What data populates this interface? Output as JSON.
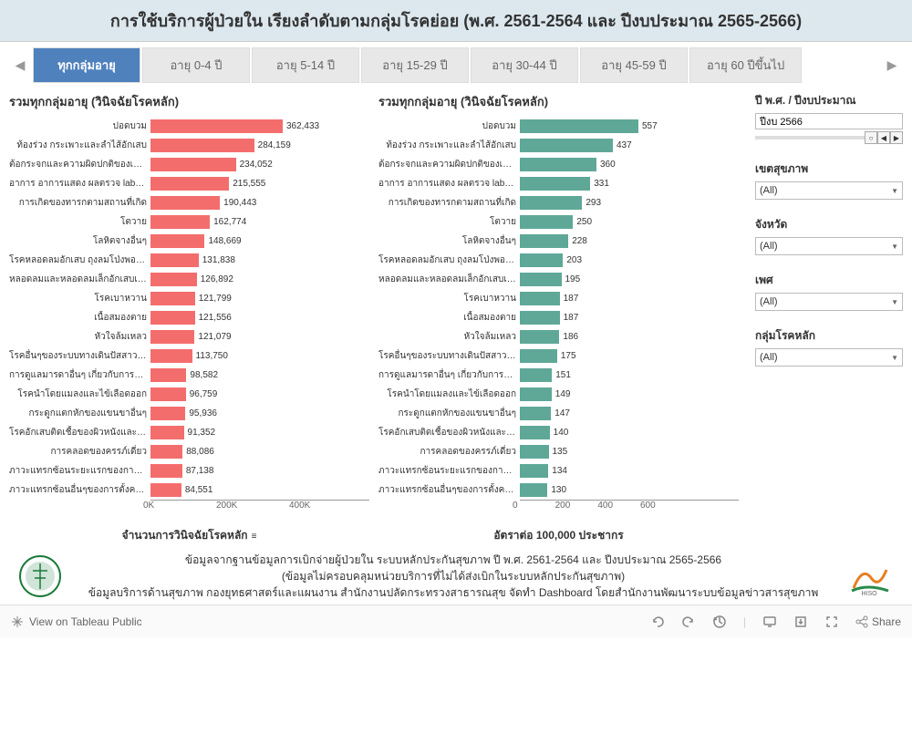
{
  "title": "การใช้บริการผู้ป่วยใน เรียงลำดับตามกลุ่มโรคย่อย (พ.ศ. 2561-2564 และ ปีงบประมาณ 2565-2566)",
  "tabs": {
    "items": [
      {
        "label": "ทุกกลุ่มอายุ",
        "active": true
      },
      {
        "label": "อายุ 0-4 ปี",
        "active": false
      },
      {
        "label": "อายุ 5-14 ปี",
        "active": false
      },
      {
        "label": "อายุ 15-29 ปี",
        "active": false
      },
      {
        "label": "อายุ 30-44 ปี",
        "active": false
      },
      {
        "label": "อายุ 45-59 ปี",
        "active": false
      },
      {
        "label": "อายุ 60 ปีขึ้นไป",
        "active": false
      }
    ]
  },
  "chart1": {
    "title": "รวมทุกกลุ่มอายุ (วินิจฉัยโรคหลัก)",
    "type": "bar",
    "bar_color": "#f46d6d",
    "background_color": "#ffffff",
    "label_fontsize": 10,
    "value_fontsize": 10,
    "max_value": 400000,
    "xticks": [
      "0K",
      "200K",
      "400K"
    ],
    "xtick_positions": [
      0,
      0.5,
      1.0
    ],
    "xlabel": "จำนวนการวินิจฉัยโรคหลัก",
    "categories": [
      "ปอดบวม",
      "ท้องร่วง กระเพาะและลำไส้อักเสบ",
      "ต้อกระจกและความผิดปกติของเลนส์..",
      "อาการ อาการแสดง ผลตรวจ lab อื่นๆ",
      "การเกิดของทารกตามสถานที่เกิด",
      "โตวาย",
      "โลหิตจางอื่นๆ",
      "โรคหลอดลมอักเสบ ถุงลมโป่งพอง ป..",
      "หลอดลมและหลอดลมเล็กอักเสบเฉีย..",
      "โรคเบาหวาน",
      "เนื้อสมองตาย",
      "หัวใจล้มเหลว",
      "โรคอื่นๆของระบบทางเดินปัสสาวะ..",
      "การดูแลมารดาอื่นๆ เกี่ยวกับการกไนค..",
      "โรคนำโดยแมลงและไข้เลือดออก",
      "กระดูกแตกหักของแขนขาอื่นๆ",
      "โรคอักเสบติดเชื้อของผิวหนังและเนื้อ..",
      "การคลอดของครรภ์เดี่ยว",
      "ภาวะแทรกซ้อนระยะแรกของการบาด..",
      "ภาวะแทรกซ้อนอื่นๆของการตั้งครรภ์.."
    ],
    "values": [
      362433,
      284159,
      234052,
      215555,
      190443,
      162774,
      148669,
      131838,
      126892,
      121799,
      121556,
      121079,
      113750,
      98582,
      96759,
      95936,
      91352,
      88086,
      87138,
      84551
    ],
    "value_labels": [
      "362,433",
      "284,159",
      "234,052",
      "215,555",
      "190,443",
      "162,774",
      "148,669",
      "131,838",
      "126,892",
      "121,799",
      "121,556",
      "121,079",
      "113,750",
      "98,582",
      "96,759",
      "95,936",
      "91,352",
      "88,086",
      "87,138",
      "84,551"
    ]
  },
  "chart2": {
    "title": "รวมทุกกลุ่มอายุ (วินิจฉัยโรคหลัก)",
    "type": "bar",
    "bar_color": "#5fa898",
    "background_color": "#ffffff",
    "label_fontsize": 10,
    "value_fontsize": 10,
    "max_value": 600,
    "xticks": [
      "0",
      "200",
      "400",
      "600"
    ],
    "xtick_positions": [
      0,
      0.333,
      0.667,
      1.0
    ],
    "xlabel": "อัตราต่อ 100,000 ประชากร",
    "categories": [
      "ปอดบวม",
      "ท้องร่วง กระเพาะและลำไส้อักเสบ",
      "ต้อกระจกและความผิดปกติของเลนส์..",
      "อาการ อาการแสดง ผลตรวจ lab อื่นๆ",
      "การเกิดของทารกตามสถานที่เกิด",
      "โตวาย",
      "โลหิตจางอื่นๆ",
      "โรคหลอดลมอักเสบ ถุงลมโป่งพอง ป..",
      "หลอดลมและหลอดลมเล็กอักเสบเฉีย..",
      "โรคเบาหวาน",
      "เนื้อสมองตาย",
      "หัวใจล้มเหลว",
      "โรคอื่นๆของระบบทางเดินปัสสาวะ..",
      "การดูแลมารดาอื่นๆ เกี่ยวกับการกไนค..",
      "โรคนำโดยแมลงและไข้เลือดออก",
      "กระดูกแตกหักของแขนขาอื่นๆ",
      "โรคอักเสบติดเชื้อของผิวหนังและเนื้อ..",
      "การคลอดของครรภ์เดี่ยว",
      "ภาวะแทรกซ้อนระยะแรกของการบาด..",
      "ภาวะแทรกซ้อนอื่นๆของการตั้งครรภ์.."
    ],
    "values": [
      557,
      437,
      360,
      331,
      293,
      250,
      228,
      203,
      195,
      187,
      187,
      186,
      175,
      151,
      149,
      147,
      140,
      135,
      134,
      130
    ],
    "value_labels": [
      "557",
      "437",
      "360",
      "331",
      "293",
      "250",
      "228",
      "203",
      "195",
      "187",
      "187",
      "186",
      "175",
      "151",
      "149",
      "147",
      "140",
      "135",
      "134",
      "130"
    ]
  },
  "filters": {
    "year": {
      "label": "ปี พ.ศ. / ปีงบประมาณ",
      "value": "ปีงบ 2566"
    },
    "health_zone": {
      "label": "เขตสุขภาพ",
      "value": "(All)"
    },
    "province": {
      "label": "จังหวัด",
      "value": "(All)"
    },
    "sex": {
      "label": "เพศ",
      "value": "(All)"
    },
    "disease_group": {
      "label": "กลุ่มโรคหลัก",
      "value": "(All)"
    }
  },
  "footer": {
    "line1": "ข้อมูลจากฐานข้อมูลการเบิกจ่ายผู้ป่วยใน ระบบหลักประกันสุขภาพ ปี พ.ศ. 2561-2564 และ ปีงบประมาณ 2565-2566",
    "line2": "(ข้อมูลไม่ครอบคลุมหน่วยบริการที่ไม่ได้ส่งเบิกในระบบหลักประกันสุขภาพ)",
    "line3": "ข้อมูลบริการด้านสุขภาพ กองยุทธศาสตร์และแผนงาน สำนักงานปลัดกระทรวงสาธารณสุข จัดทำ Dashboard โดยสำนักงานพัฒนาระบบข้อมูลข่าวสารสุขภาพ"
  },
  "toolbar": {
    "view_label": "View on Tableau Public",
    "share_label": "Share"
  }
}
